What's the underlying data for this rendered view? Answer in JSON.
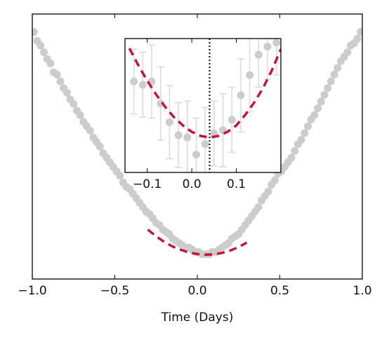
{
  "chart_data": [
    {
      "type": "scatter",
      "panel": "main",
      "title": "",
      "xlabel": "Time (Days)",
      "ylabel": "",
      "xlim": [
        -1.0,
        1.0
      ],
      "xticks": [
        -1.0,
        -0.5,
        0.0,
        0.5,
        1.0
      ],
      "xtick_labels": [
        "−1.0",
        "−0.5",
        "0.0",
        "0.5",
        "1.0"
      ],
      "y_ticks_shown": false,
      "grid": false,
      "legend": "none",
      "series": [
        {
          "kind": "points",
          "color": "#cccccc",
          "x": [
            -0.99,
            -0.97,
            -0.95,
            -0.93,
            -0.91,
            -0.89,
            -0.87,
            -0.85,
            -0.83,
            -0.81,
            -0.79,
            -0.77,
            -0.75,
            -0.73,
            -0.71,
            -0.69,
            -0.67,
            -0.65,
            -0.63,
            -0.61,
            -0.59,
            -0.57,
            -0.55,
            -0.53,
            -0.51,
            -0.49,
            -0.47,
            -0.45,
            -0.43,
            -0.41,
            -0.39,
            -0.37,
            -0.35,
            -0.33,
            -0.31,
            -0.29,
            -0.27,
            -0.25,
            -0.23,
            -0.21,
            -0.19,
            -0.17,
            -0.15,
            -0.13,
            -0.11,
            -0.09,
            -0.07,
            -0.05,
            -0.03,
            -0.01,
            0.01,
            0.03,
            0.05,
            0.07,
            0.09,
            0.11,
            0.13,
            0.15,
            0.17,
            0.19,
            0.21,
            0.23,
            0.25,
            0.27,
            0.29,
            0.31,
            0.33,
            0.35,
            0.37,
            0.39,
            0.41,
            0.43,
            0.45,
            0.47,
            0.49,
            0.51,
            0.53,
            0.55,
            0.57,
            0.59,
            0.61,
            0.63,
            0.65,
            0.67,
            0.69,
            0.71,
            0.73,
            0.75,
            0.77,
            0.79,
            0.81,
            0.83,
            0.85,
            0.87,
            0.89,
            0.91,
            0.93,
            0.95,
            0.97,
            0.99
          ],
          "y": [
            1.0,
            0.96,
            0.94,
            0.91,
            0.88,
            0.86,
            0.82,
            0.81,
            0.78,
            0.75,
            0.73,
            0.7,
            0.68,
            0.65,
            0.63,
            0.6,
            0.58,
            0.56,
            0.53,
            0.51,
            0.49,
            0.46,
            0.44,
            0.42,
            0.4,
            0.38,
            0.36,
            0.33,
            0.31,
            0.3,
            0.28,
            0.26,
            0.24,
            0.22,
            0.2,
            0.19,
            0.17,
            0.15,
            0.14,
            0.12,
            0.11,
            0.1,
            0.08,
            0.07,
            0.06,
            0.05,
            0.04,
            0.04,
            0.03,
            0.02,
            0.02,
            0.01,
            0.01,
            0.01,
            0.02,
            0.02,
            0.03,
            0.04,
            0.05,
            0.06,
            0.08,
            0.09,
            0.1,
            0.12,
            0.14,
            0.16,
            0.18,
            0.2,
            0.22,
            0.25,
            0.27,
            0.29,
            0.32,
            0.34,
            0.37,
            0.38,
            0.4,
            0.42,
            0.44,
            0.47,
            0.5,
            0.52,
            0.55,
            0.58,
            0.61,
            0.63,
            0.66,
            0.69,
            0.72,
            0.75,
            0.78,
            0.81,
            0.84,
            0.87,
            0.89,
            0.91,
            0.94,
            0.95,
            0.97,
            1.0
          ]
        },
        {
          "kind": "fit",
          "color": "#c0163a",
          "style": "dashed",
          "x": [
            -0.3,
            -0.25,
            -0.2,
            -0.15,
            -0.1,
            -0.05,
            0.0,
            0.05,
            0.1,
            0.15,
            0.2,
            0.25,
            0.3
          ],
          "y": [
            0.12,
            0.09,
            0.065,
            0.045,
            0.03,
            0.018,
            0.011,
            0.008,
            0.01,
            0.016,
            0.027,
            0.042,
            0.062
          ]
        }
      ],
      "ylim": [
        -0.1,
        1.08
      ]
    },
    {
      "type": "scatter",
      "panel": "inset",
      "title": "",
      "xlabel": "",
      "ylabel": "",
      "xlim": [
        -0.15,
        0.2
      ],
      "xticks": [
        -0.1,
        0.0,
        0.1
      ],
      "xtick_labels": [
        "−0.1",
        "0.0",
        "0.1"
      ],
      "y_ticks_shown": false,
      "grid": false,
      "legend": "none",
      "vline": {
        "x": 0.04,
        "color": "#000000",
        "style": "dotted"
      },
      "series": [
        {
          "kind": "points_with_errorbars",
          "color": "#cccccc",
          "x": [
            -0.13,
            -0.11,
            -0.09,
            -0.07,
            -0.05,
            -0.03,
            -0.01,
            0.01,
            0.03,
            0.05,
            0.07,
            0.09,
            0.11,
            0.13,
            0.15,
            0.17,
            0.19
          ],
          "y": [
            0.112,
            0.108,
            0.112,
            0.085,
            0.062,
            0.046,
            0.043,
            0.022,
            0.035,
            0.048,
            0.052,
            0.065,
            0.095,
            0.12,
            0.145,
            0.155,
            0.16
          ],
          "err": [
            0.04,
            0.04,
            0.045,
            0.045,
            0.045,
            0.04,
            0.045,
            0.045,
            0.045,
            0.04,
            0.045,
            0.04,
            0.045,
            0.045,
            0.04,
            0.04,
            0.04
          ]
        },
        {
          "kind": "fit",
          "color": "#c0163a",
          "style": "dashed",
          "x": [
            -0.14,
            -0.12,
            -0.1,
            -0.08,
            -0.06,
            -0.04,
            -0.02,
            0.0,
            0.02,
            0.04,
            0.06,
            0.08,
            0.1,
            0.12,
            0.14,
            0.16,
            0.18,
            0.2
          ],
          "y": [
            0.153,
            0.132,
            0.113,
            0.096,
            0.081,
            0.068,
            0.058,
            0.05,
            0.045,
            0.043,
            0.045,
            0.05,
            0.058,
            0.071,
            0.086,
            0.104,
            0.126,
            0.152
          ]
        }
      ],
      "ylim": [
        0.0,
        0.165
      ]
    }
  ]
}
